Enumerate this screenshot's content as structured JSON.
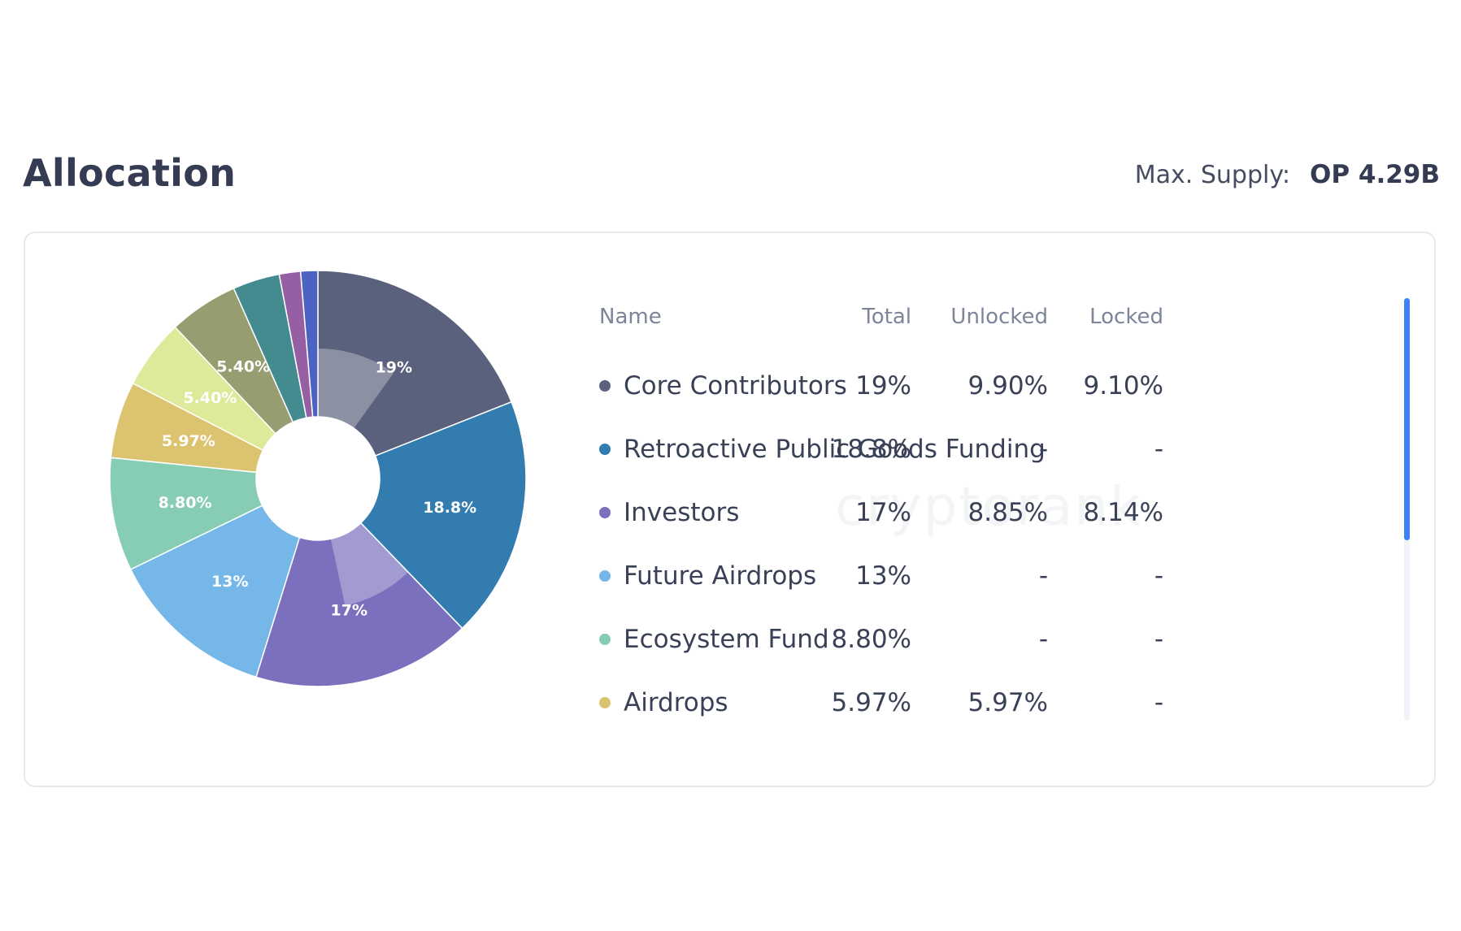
{
  "header": {
    "title": "Allocation",
    "supply_label": "Max. Supply:",
    "supply_value": "OP 4.29B"
  },
  "watermark": "cryptorank",
  "table": {
    "columns": [
      "Name",
      "Total",
      "Unlocked",
      "Locked"
    ],
    "rows": [
      {
        "name": "Core Contributors",
        "total": "19%",
        "unlocked": "9.90%",
        "locked": "9.10%",
        "color": "#5a617c"
      },
      {
        "name": "Retroactive Public Goods Funding",
        "total": "18.8%",
        "unlocked": "-",
        "locked": "-",
        "color": "#337cb0"
      },
      {
        "name": "Investors",
        "total": "17%",
        "unlocked": "8.85%",
        "locked": "8.14%",
        "color": "#7a70be"
      },
      {
        "name": "Future Airdrops",
        "total": "13%",
        "unlocked": "-",
        "locked": "-",
        "color": "#75b7e8"
      },
      {
        "name": "Ecosystem Fund",
        "total": "8.80%",
        "unlocked": "-",
        "locked": "-",
        "color": "#86cdb4"
      },
      {
        "name": "Airdrops",
        "total": "5.97%",
        "unlocked": "5.97%",
        "locked": "-",
        "color": "#dbc36f"
      }
    ]
  },
  "chart_data": {
    "type": "pie",
    "donut": true,
    "slices": [
      {
        "value": 19,
        "label": "19%",
        "color": "#5a617c",
        "unlocked": 9.9
      },
      {
        "value": 18.8,
        "label": "18.8%",
        "color": "#337cb0"
      },
      {
        "value": 17,
        "label": "17%",
        "color": "#7a70be",
        "unlocked": 8.85
      },
      {
        "value": 13,
        "label": "13%",
        "color": "#75b7e8"
      },
      {
        "value": 8.8,
        "label": "8.80%",
        "color": "#86cdb4"
      },
      {
        "value": 5.97,
        "label": "5.97%",
        "color": "#dbc36f"
      },
      {
        "value": 5.4,
        "label": "5.40%",
        "color": "#dfe99a"
      },
      {
        "value": 5.4,
        "label": "5.40%",
        "color": "#979d70"
      },
      {
        "value": 3.65,
        "label": "",
        "color": "#448b8f"
      },
      {
        "value": 1.65,
        "label": "",
        "color": "#975fa3"
      },
      {
        "value": 1.33,
        "label": "",
        "color": "#4d63c4"
      }
    ]
  }
}
